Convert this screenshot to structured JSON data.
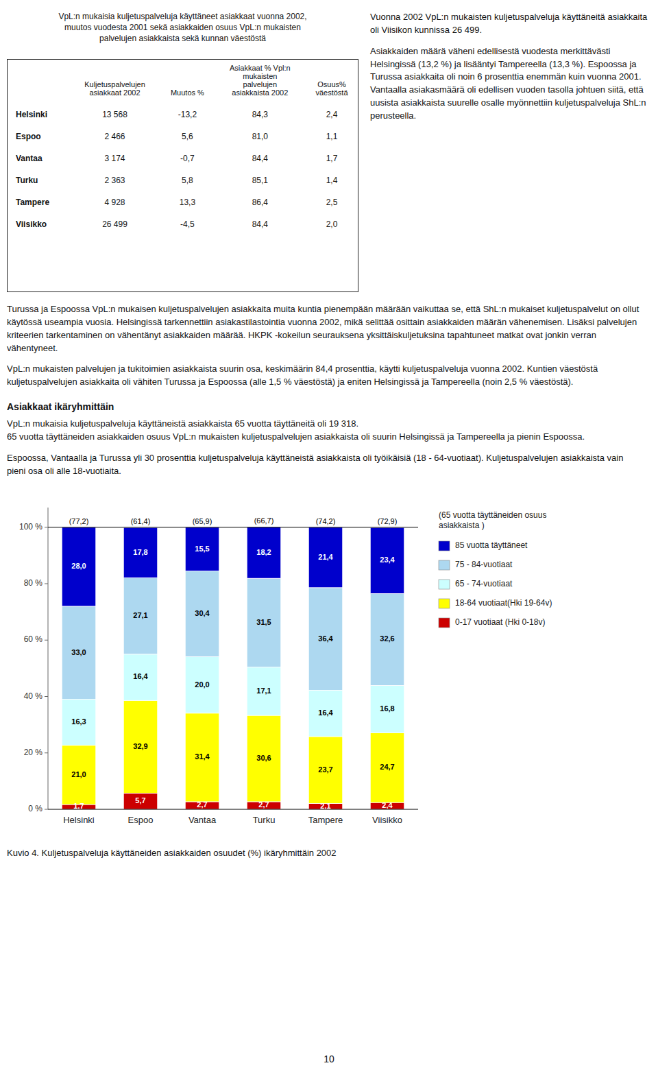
{
  "chart_data": {
    "type": "bar",
    "stacked": true,
    "data_labels": true,
    "title": "Kuvio 4. Kuljetuspalveluja käyttäneiden asiakkaiden osuudet (%) ikäryhmittäin 2002",
    "categories": [
      "Helsinki",
      "Espoo",
      "Vantaa",
      "Turku",
      "Tampere",
      "Viisikko"
    ],
    "series": [
      {
        "name": "0-17 vuotiaat (Hki 0-18v)",
        "color": "#cc0000",
        "values": [
          1.7,
          5.7,
          2.7,
          2.7,
          2.1,
          2.4
        ],
        "value_labels": [
          "1,7",
          "5,7",
          "2,7",
          "2,7",
          "2,1",
          "2,4"
        ]
      },
      {
        "name": "18-64 vuotiaat(Hki 19-64v)",
        "color": "#ffff00",
        "values": [
          21.0,
          32.9,
          31.4,
          30.6,
          23.7,
          24.7
        ],
        "value_labels": [
          "21,0",
          "32,9",
          "31,4",
          "30,6",
          "23,7",
          "24,7"
        ]
      },
      {
        "name": "65 - 74-vuotiaat",
        "color": "#ccffff",
        "values": [
          16.3,
          16.4,
          20.0,
          17.1,
          16.4,
          16.8
        ],
        "value_labels": [
          "16,3",
          "16,4",
          "20,0",
          "17,1",
          "16,4",
          "16,8"
        ]
      },
      {
        "name": "75 - 84-vuotiaat",
        "color": "#add8f0",
        "values": [
          33.0,
          27.1,
          30.4,
          31.5,
          36.4,
          32.6
        ],
        "value_labels": [
          "33,0",
          "27,1",
          "30,4",
          "31,5",
          "36,4",
          "32,6"
        ]
      },
      {
        "name": "85 vuotta täyttäneet",
        "color": "#0000cc",
        "values": [
          28.0,
          17.8,
          15.5,
          18.2,
          21.4,
          23.4
        ],
        "value_labels": [
          "28,0",
          "17,8",
          "15,5",
          "18,2",
          "21,4",
          "23,4"
        ]
      }
    ],
    "ylim": [
      0,
      107
    ],
    "yticks": [
      {
        "value": 0,
        "label": "0 %"
      },
      {
        "value": 20,
        "label": "20 %"
      },
      {
        "value": 40,
        "label": "40 %"
      },
      {
        "value": 60,
        "label": "60 %"
      },
      {
        "value": 80,
        "label": "80 %"
      },
      {
        "value": 100,
        "label": "100 %"
      }
    ],
    "grid": false,
    "legend": "right",
    "legend_title": "(65 vuotta täyttäneiden osuus\nasiakkaista )",
    "annotations": [
      {
        "text": "(77,2)",
        "category": "Helsinki"
      },
      {
        "text": "(61,4)",
        "category": "Espoo"
      },
      {
        "text": "(65,9)",
        "category": "Vantaa"
      },
      {
        "text": "(66,7)",
        "category": "Turku"
      },
      {
        "text": "(74,2)",
        "category": "Tampere"
      },
      {
        "text": "(72,9)",
        "category": "Viisikko"
      }
    ]
  },
  "page": {
    "table_title": "VpL:n mukaisia kuljetuspalveluja käyttäneet asiakkaat vuonna 2002,\nmuutos vuodesta 2001 sekä asiakkaiden osuus VpL:n mukaisten\npalvelujen asiakkaista sekä  kunnan väestöstä",
    "table_col_headers": [
      "Kuljetuspalvelujen\nasiakkaat 2002",
      "Muutos %",
      "Asiakkaat % Vpl:n\nmukaisten\npalvelujen\nasiakkaista 2002",
      "Osuus%\nväestöstä"
    ],
    "table_rows": [
      [
        "Helsinki",
        "13 568",
        "-13,2",
        "84,3",
        "2,4"
      ],
      [
        "Espoo",
        "2 466",
        "5,6",
        "81,0",
        "1,1"
      ],
      [
        "Vantaa",
        "3 174",
        "-0,7",
        "84,4",
        "1,7"
      ],
      [
        "Turku",
        "2 363",
        "5,8",
        "85,1",
        "1,4"
      ],
      [
        "Tampere",
        "4 928",
        "13,3",
        "86,4",
        "2,5"
      ],
      [
        "Viisikko",
        "26 499",
        "-4,5",
        "84,4",
        "2,0"
      ]
    ],
    "right_col_text": [
      "Vuonna 2002 VpL:n mukaisten kuljetuspalveluja käyttäneitä asiakkaita oli Viisikon kunnissa 26 499.",
      "Asiakkaiden määrä väheni edellisestä vuodesta merkittävästi Helsingissä (13,2 %) ja lisääntyi Tampereella (13,3 %). Espoossa ja Turussa asiakkaita oli noin 6 prosenttia enemmän kuin vuonna 2001. Vantaalla asiakasmäärä oli edellisen vuoden tasolla johtuen siitä, että uusista asiakkaista suurelle osalle myönnettiin kuljetuspalveluja ShL:n perusteella.",
      "Turussa ja Espoossa VpL:n mukaisen kuljetuspalvelujen asiakkaita muita kuntia pienempään määrään vaikuttaa se, että ShL:n mukaiset kuljetuspalvelut on ollut käytössä useampia vuosia.  Helsingissä tarkennettiin asiakastilastointia vuonna 2002, mikä selittää osittain asiakkaiden määrän vähenemisen. Lisäksi palvelujen kriteerien tarkentaminen on vähentänyt asiakkaiden määrää. HKPK -kokeilun seurauksena yksittäiskuljetuksina tapahtuneet matkat ovat jonkin verran vähentyneet."
    ],
    "body_paragraphs": [
      "VpL:n mukaisten palvelujen ja tukitoimien asiakkaista suurin osa, keskimäärin 84,4 prosenttia, käytti kuljetuspalveluja vuonna 2002. Kuntien väestöstä kuljetuspalvelujen asiakkaita oli vähiten Turussa ja Espoossa (alle 1,5 % väestöstä) ja eniten Helsingissä ja Tampereella (noin 2,5 % väestöstä).",
      "VpL:n mukaisia kuljetuspalveluja käyttäneistä asiakkaista 65 vuotta täyttäneitä oli 19 318.\n65 vuotta täyttäneiden asiakkaiden osuus VpL:n mukaisten kuljetuspalvelujen asiakkaista oli suurin Helsingissä ja Tampereella ja pienin Espoossa.",
      "Espoossa, Vantaalla ja Turussa yli 30 prosenttia kuljetuspalveluja käyttäneistä asiakkaista oli työikäisiä (18 - 64-vuotiaat). Kuljetuspalvelujen asiakkaista vain pieni osa oli alle 18-vuotiaita."
    ],
    "section_header": "Asiakkaat ikäryhmittäin",
    "page_number": "10"
  }
}
